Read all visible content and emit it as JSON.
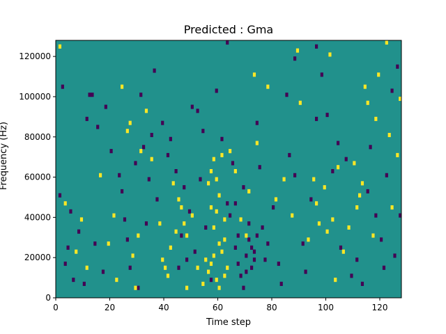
{
  "chart_data": {
    "type": "heatmap",
    "title": "Predicted : Gma",
    "xlabel": "Time step",
    "ylabel": "Frequency (Hz)",
    "xlim": [
      0,
      128
    ],
    "ylim": [
      0,
      128000
    ],
    "x_ticks": [
      0,
      20,
      40,
      60,
      80,
      100,
      120
    ],
    "x_tick_labels": [
      "0",
      "20",
      "40",
      "60",
      "80",
      "100",
      "120"
    ],
    "y_ticks": [
      0,
      20000,
      40000,
      60000,
      80000,
      100000,
      120000
    ],
    "y_tick_labels": [
      "0",
      "20000",
      "40000",
      "60000",
      "80000",
      "100000",
      "120000"
    ],
    "grid": false,
    "colormap": "viridis",
    "background_value": 0.5,
    "colors": {
      "low": "#440154",
      "mid": "#21918c",
      "high": "#fde725"
    },
    "cells": {
      "high": [
        [
          1,
          124000
        ],
        [
          56,
          12000
        ],
        [
          57,
          16000
        ],
        [
          58,
          20000
        ],
        [
          59,
          8000
        ],
        [
          60,
          50000
        ],
        [
          61,
          70000
        ],
        [
          62,
          28000
        ],
        [
          56,
          56000
        ],
        [
          57,
          62000
        ],
        [
          58,
          68000
        ],
        [
          59,
          42000
        ],
        [
          60,
          4000
        ],
        [
          61,
          22000
        ],
        [
          62,
          38000
        ],
        [
          63,
          14000
        ],
        [
          45,
          48000
        ],
        [
          46,
          44000
        ],
        [
          47,
          36000
        ],
        [
          43,
          56000
        ],
        [
          44,
          32000
        ],
        [
          48,
          30000
        ],
        [
          39,
          18000
        ],
        [
          40,
          14000
        ],
        [
          30,
          30000
        ],
        [
          31,
          72000
        ],
        [
          33,
          92000
        ],
        [
          35,
          68000
        ],
        [
          27,
          86000
        ],
        [
          26,
          82000
        ],
        [
          24,
          104000
        ],
        [
          21,
          40000
        ],
        [
          73,
          110000
        ],
        [
          71,
          52000
        ],
        [
          74,
          76000
        ],
        [
          78,
          104000
        ],
        [
          84,
          58000
        ],
        [
          87,
          40000
        ],
        [
          90,
          96000
        ],
        [
          93,
          28000
        ],
        [
          95,
          58000
        ],
        [
          96,
          46000
        ],
        [
          97,
          36000
        ],
        [
          99,
          54000
        ],
        [
          100,
          32000
        ],
        [
          102,
          38000
        ],
        [
          103,
          8000
        ],
        [
          104,
          64000
        ],
        [
          106,
          22000
        ],
        [
          108,
          34000
        ],
        [
          111,
          44000
        ],
        [
          113,
          56000
        ],
        [
          115,
          96000
        ],
        [
          117,
          30000
        ],
        [
          119,
          110000
        ],
        [
          122,
          126000
        ],
        [
          123,
          80000
        ],
        [
          124,
          44000
        ],
        [
          126,
          70000
        ],
        [
          127,
          98000
        ],
        [
          110,
          66000
        ],
        [
          112,
          50000
        ],
        [
          89,
          122000
        ],
        [
          81,
          48000
        ],
        [
          55,
          18000
        ],
        [
          54,
          6000
        ],
        [
          52,
          14000
        ],
        [
          50,
          40000
        ],
        [
          48,
          4000
        ],
        [
          42,
          24000
        ],
        [
          41,
          10000
        ],
        [
          38,
          36000
        ],
        [
          29,
          4000
        ],
        [
          28,
          20000
        ],
        [
          22,
          8000
        ],
        [
          19,
          26000
        ],
        [
          16,
          60000
        ],
        [
          11,
          14000
        ],
        [
          9,
          38000
        ],
        [
          7,
          22000
        ],
        [
          3,
          46000
        ],
        [
          70,
          30000
        ],
        [
          68,
          38000
        ],
        [
          66,
          62000
        ],
        [
          64,
          72000
        ],
        [
          101,
          120000
        ],
        [
          114,
          104000
        ],
        [
          118,
          88000
        ],
        [
          58,
          34000
        ],
        [
          60,
          26000
        ],
        [
          62,
          10000
        ],
        [
          57,
          44000
        ],
        [
          59,
          58000
        ]
      ],
      "low": [
        [
          12,
          100000
        ],
        [
          13,
          100000
        ],
        [
          23,
          60000
        ],
        [
          24,
          52000
        ],
        [
          25,
          38000
        ],
        [
          26,
          28000
        ],
        [
          27,
          14000
        ],
        [
          30,
          4000
        ],
        [
          31,
          100000
        ],
        [
          32,
          74000
        ],
        [
          35,
          80000
        ],
        [
          36,
          112000
        ],
        [
          39,
          86000
        ],
        [
          42,
          78000
        ],
        [
          44,
          62000
        ],
        [
          46,
          30000
        ],
        [
          48,
          18000
        ],
        [
          49,
          42000
        ],
        [
          51,
          22000
        ],
        [
          53,
          58000
        ],
        [
          55,
          34000
        ],
        [
          57,
          8000
        ],
        [
          59,
          102000
        ],
        [
          61,
          78000
        ],
        [
          63,
          46000
        ],
        [
          65,
          66000
        ],
        [
          66,
          24000
        ],
        [
          67,
          16000
        ],
        [
          68,
          10000
        ],
        [
          69,
          54000
        ],
        [
          70,
          20000
        ],
        [
          71,
          28000
        ],
        [
          72,
          14000
        ],
        [
          73,
          22000
        ],
        [
          74,
          30000
        ],
        [
          75,
          64000
        ],
        [
          76,
          34000
        ],
        [
          77,
          18000
        ],
        [
          78,
          26000
        ],
        [
          80,
          44000
        ],
        [
          82,
          16000
        ],
        [
          83,
          6000
        ],
        [
          85,
          100000
        ],
        [
          86,
          70000
        ],
        [
          88,
          60000
        ],
        [
          91,
          26000
        ],
        [
          92,
          12000
        ],
        [
          94,
          48000
        ],
        [
          96,
          88000
        ],
        [
          98,
          110000
        ],
        [
          100,
          90000
        ],
        [
          102,
          62000
        ],
        [
          104,
          76000
        ],
        [
          105,
          24000
        ],
        [
          107,
          68000
        ],
        [
          109,
          10000
        ],
        [
          111,
          18000
        ],
        [
          113,
          6000
        ],
        [
          115,
          52000
        ],
        [
          116,
          74000
        ],
        [
          118,
          40000
        ],
        [
          120,
          28000
        ],
        [
          121,
          14000
        ],
        [
          122,
          60000
        ],
        [
          124,
          102000
        ],
        [
          125,
          20000
        ],
        [
          126,
          114000
        ],
        [
          127,
          40000
        ],
        [
          96,
          124000
        ],
        [
          88,
          118000
        ],
        [
          74,
          86000
        ],
        [
          63,
          126000
        ],
        [
          52,
          92000
        ],
        [
          41,
          70000
        ],
        [
          37,
          48000
        ],
        [
          34,
          58000
        ],
        [
          29,
          66000
        ],
        [
          20,
          72000
        ],
        [
          18,
          94000
        ],
        [
          15,
          84000
        ],
        [
          11,
          88000
        ],
        [
          8,
          32000
        ],
        [
          6,
          8000
        ],
        [
          5,
          42000
        ],
        [
          4,
          24000
        ],
        [
          3,
          16000
        ],
        [
          2,
          104000
        ],
        [
          1,
          50000
        ],
        [
          17,
          12000
        ],
        [
          14,
          26000
        ],
        [
          10,
          6000
        ],
        [
          33,
          36000
        ],
        [
          45,
          14000
        ],
        [
          47,
          54000
        ],
        [
          50,
          94000
        ],
        [
          54,
          82000
        ],
        [
          64,
          40000
        ],
        [
          67,
          30000
        ],
        [
          69,
          4000
        ],
        [
          70,
          12000
        ],
        [
          71,
          36000
        ],
        [
          72,
          24000
        ],
        [
          73,
          18000
        ],
        [
          66,
          46000
        ]
      ]
    }
  }
}
